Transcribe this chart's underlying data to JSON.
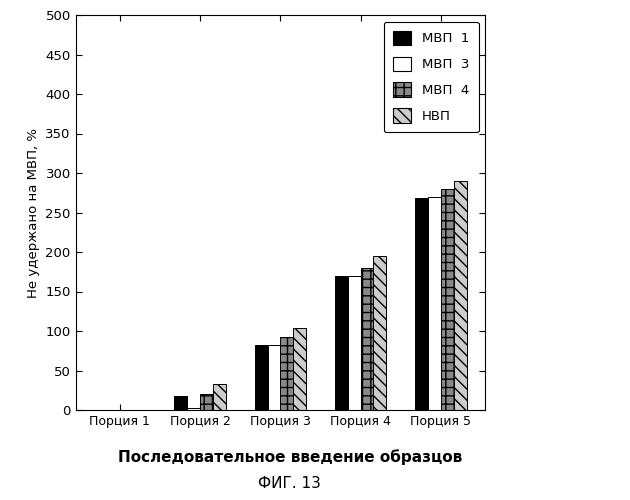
{
  "categories": [
    "Порция 1",
    "Порция 2",
    "Порция 3",
    "Порция 4",
    "Порция 5"
  ],
  "series": {
    "МВП  1": [
      0,
      18,
      82,
      170,
      268
    ],
    "МВП  3": [
      0,
      2,
      82,
      170,
      270
    ],
    "МВП  4": [
      0,
      20,
      93,
      180,
      280
    ],
    "НВП": [
      0,
      33,
      104,
      195,
      290
    ]
  },
  "series_labels": [
    "МВП  1",
    "МВП  3",
    "МВП  4",
    "НВП"
  ],
  "ylabel": "Не удержано на МВП, %",
  "xlabel_main": "Последовательное введение образцов",
  "xlabel_sub": "ФИГ. 13",
  "ylim": [
    0,
    500
  ],
  "yticks": [
    0,
    50,
    100,
    150,
    200,
    250,
    300,
    350,
    400,
    450,
    500
  ],
  "background_color": "#ffffff",
  "bar_width": 0.16,
  "legend_labels": [
    "МВП  1",
    "МВП  3",
    "МВП  4",
    "НВП"
  ]
}
